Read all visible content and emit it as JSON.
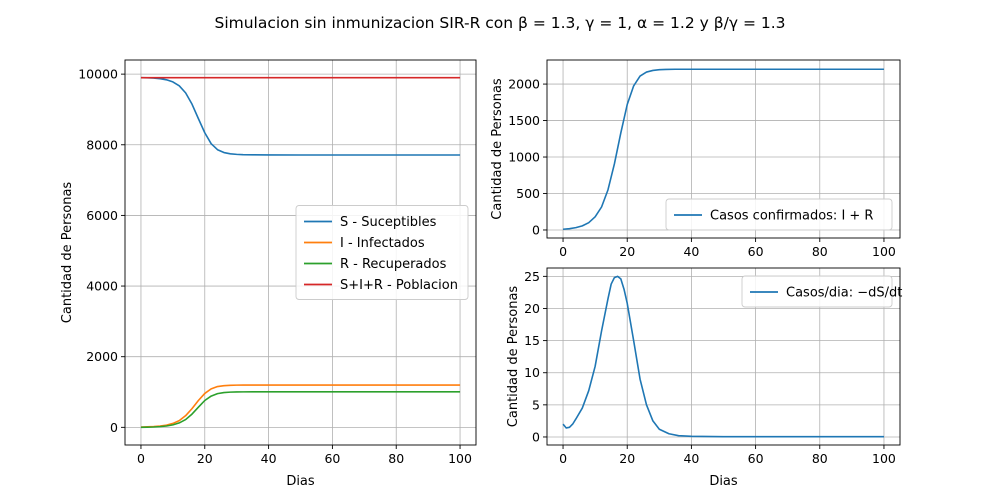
{
  "figure": {
    "title": "Simulacion sin inmunizacion SIR-R con β = 1.3, γ = 1, α = 1.2 y β/γ = 1.3"
  },
  "colors": {
    "blue": "#1f77b4",
    "orange": "#ff7f0e",
    "green": "#2ca02c",
    "red": "#d62728",
    "grid": "#b0b0b0"
  },
  "chart_data": [
    {
      "type": "line",
      "xlabel": "Dias",
      "ylabel": "Cantidad de Personas",
      "xlim": [
        -5,
        105
      ],
      "ylim": [
        -500,
        10400
      ],
      "xticks": [
        0,
        20,
        40,
        60,
        80,
        100
      ],
      "yticks": [
        0,
        2000,
        4000,
        6000,
        8000,
        10000
      ],
      "grid": true,
      "legend": "center-right",
      "series": [
        {
          "name": "S - Suceptibles",
          "color": "#1f77b4",
          "x": [
            0,
            2,
            4,
            6,
            8,
            10,
            12,
            14,
            16,
            18,
            20,
            22,
            24,
            26,
            28,
            30,
            32,
            35,
            40,
            50,
            60,
            70,
            80,
            90,
            100
          ],
          "y": [
            9900,
            9896,
            9888,
            9872,
            9840,
            9780,
            9670,
            9470,
            9150,
            8740,
            8340,
            8030,
            7860,
            7780,
            7745,
            7728,
            7720,
            7715,
            7712,
            7710,
            7710,
            7710,
            7710,
            7710,
            7710
          ]
        },
        {
          "name": "I - Infectados",
          "color": "#ff7f0e",
          "x": [
            0,
            2,
            4,
            6,
            8,
            10,
            12,
            14,
            16,
            18,
            20,
            22,
            24,
            26,
            28,
            30,
            32,
            35,
            40,
            50,
            60,
            70,
            80,
            90,
            100
          ],
          "y": [
            10,
            14,
            22,
            36,
            62,
            110,
            190,
            330,
            530,
            760,
            960,
            1090,
            1155,
            1180,
            1190,
            1195,
            1197,
            1198,
            1198,
            1198,
            1198,
            1198,
            1198,
            1198,
            1198
          ]
        },
        {
          "name": "R - Recuperados",
          "color": "#2ca02c",
          "x": [
            0,
            2,
            4,
            6,
            8,
            10,
            12,
            14,
            16,
            18,
            20,
            22,
            24,
            26,
            28,
            30,
            32,
            35,
            40,
            50,
            60,
            70,
            80,
            90,
            100
          ],
          "y": [
            0,
            4,
            10,
            20,
            38,
            70,
            125,
            220,
            375,
            570,
            760,
            885,
            955,
            985,
            997,
            1002,
            1004,
            1005,
            1005,
            1005,
            1005,
            1005,
            1005,
            1005,
            1005
          ]
        },
        {
          "name": "S+I+R - Poblacion",
          "color": "#d62728",
          "x": [
            0,
            100
          ],
          "y": [
            9900,
            9900
          ]
        }
      ]
    },
    {
      "type": "line",
      "xlabel": "",
      "ylabel": "Cantidad de Personas",
      "xlim": [
        -5,
        105
      ],
      "ylim": [
        -110,
        2330
      ],
      "xticks": [
        0,
        20,
        40,
        60,
        80,
        100
      ],
      "yticks": [
        0,
        500,
        1000,
        1500,
        2000
      ],
      "grid": true,
      "legend": "bottom-right",
      "series": [
        {
          "name": "Casos confirmados: I + R",
          "color": "#1f77b4",
          "x": [
            0,
            2,
            4,
            6,
            8,
            10,
            12,
            14,
            16,
            18,
            20,
            22,
            24,
            26,
            28,
            30,
            32,
            35,
            40,
            50,
            60,
            70,
            80,
            90,
            100
          ],
          "y": [
            10,
            18,
            32,
            56,
            100,
            180,
            315,
            550,
            905,
            1330,
            1720,
            1975,
            2110,
            2165,
            2187,
            2197,
            2201,
            2203,
            2203,
            2203,
            2203,
            2203,
            2203,
            2203,
            2203
          ]
        }
      ]
    },
    {
      "type": "line",
      "xlabel": "Dias",
      "ylabel": "Cantidad de Personas",
      "xlim": [
        -5,
        105
      ],
      "ylim": [
        -1.25,
        26.3
      ],
      "xticks": [
        0,
        20,
        40,
        60,
        80,
        100
      ],
      "yticks": [
        0,
        5,
        10,
        15,
        20,
        25
      ],
      "grid": true,
      "legend": "top-right",
      "series": [
        {
          "name": "Casos/dia: −dS/dt",
          "color": "#1f77b4",
          "x": [
            0,
            1,
            2,
            3,
            4,
            6,
            8,
            10,
            12,
            14,
            15,
            16,
            17,
            18,
            19,
            20,
            22,
            24,
            26,
            28,
            30,
            33,
            36,
            40,
            50,
            60,
            70,
            80,
            90,
            100
          ],
          "y": [
            2.0,
            1.4,
            1.5,
            2.0,
            2.8,
            4.5,
            7.2,
            11.0,
            16.5,
            21.5,
            23.8,
            24.8,
            25.0,
            24.6,
            23.0,
            20.8,
            15.0,
            9.0,
            5.0,
            2.5,
            1.2,
            0.5,
            0.2,
            0.1,
            0.05,
            0.05,
            0.05,
            0.05,
            0.05,
            0.05
          ]
        }
      ]
    }
  ]
}
